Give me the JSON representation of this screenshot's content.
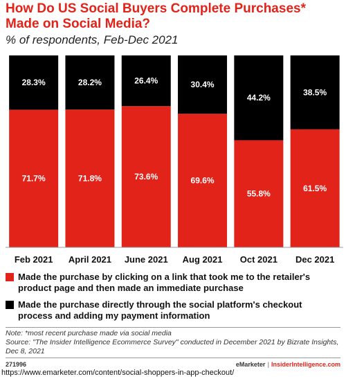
{
  "title": "How Do US Social Buyers Complete Purchases* Made on Social Media?",
  "subtitle": "% of respondents, Feb-Dec 2021",
  "chart_data": {
    "type": "bar",
    "stacked": true,
    "categories": [
      "Feb 2021",
      "April 2021",
      "June 2021",
      "Aug 2021",
      "Oct 2021",
      "Dec 2021"
    ],
    "series": [
      {
        "name": "Made the purchase by clicking on a link that took me to the retailer's product page and then made an immediate purchase",
        "values": [
          71.7,
          71.8,
          73.6,
          69.6,
          55.8,
          61.5
        ],
        "color": "#e2231a"
      },
      {
        "name": "Made the purchase directly through the social platform's checkout process and adding my payment information",
        "values": [
          28.3,
          28.2,
          26.4,
          30.4,
          44.2,
          38.5
        ],
        "color": "#000000"
      }
    ],
    "value_labels": [
      [
        "71.7%",
        "71.8%",
        "73.6%",
        "69.6%",
        "55.8%",
        "61.5%"
      ],
      [
        "28.3%",
        "28.2%",
        "26.4%",
        "30.4%",
        "44.2%",
        "38.5%"
      ]
    ],
    "ylim": [
      0,
      100
    ],
    "legend_position": "bottom"
  },
  "legend": [
    {
      "label": "Made the purchase by clicking on a link that took me to the retailer's product page and then made an immediate purchase",
      "color": "#e2231a"
    },
    {
      "label": "Made the purchase directly through the social platform's checkout process and adding my payment information",
      "color": "#000000"
    }
  ],
  "notes": {
    "note": "Note: *most recent purchase made via social media",
    "source": "Source: \"The Insider Intelligence Ecommerce Survey\" conducted in December 2021 by Bizrate Insights, Dec 8, 2021"
  },
  "footer": {
    "id": "271996",
    "brand_left": "eMarketer",
    "separator": "|",
    "brand_right": "InsiderIntelligence.com"
  },
  "url": "https://www.emarketer.com/content/social-shoppers-in-app-checkout/"
}
